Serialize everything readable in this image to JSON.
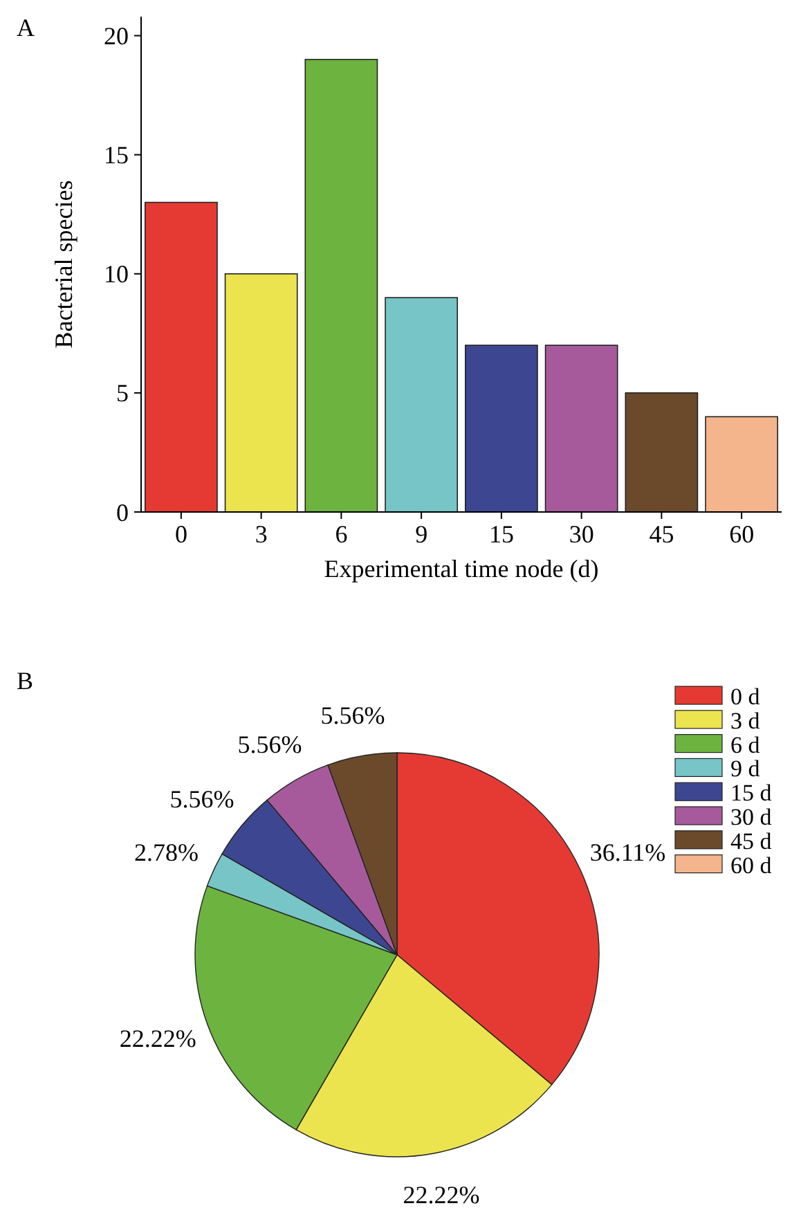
{
  "chart_data": [
    {
      "type": "bar",
      "title": "A",
      "xlabel": "Experimental time node (d)",
      "ylabel": "Bacterial species",
      "categories": [
        "0",
        "3",
        "6",
        "9",
        "15",
        "30",
        "45",
        "60"
      ],
      "values": [
        13,
        10,
        19,
        9,
        7,
        7,
        5,
        4
      ],
      "colors": [
        "#e53a33",
        "#ebe44f",
        "#6db33f",
        "#77c5c6",
        "#3d4690",
        "#a65a9c",
        "#6b4a2b",
        "#f4b48c"
      ],
      "ylim": [
        0,
        20.8
      ],
      "yticks": [
        0,
        5,
        10,
        15,
        20
      ]
    },
    {
      "type": "pie",
      "title": "B",
      "categories": [
        "0 d",
        "3 d",
        "6 d",
        "9 d",
        "15 d",
        "30 d",
        "45 d",
        "60 d"
      ],
      "values": [
        36.11,
        22.22,
        22.22,
        2.78,
        5.56,
        5.56,
        5.56,
        0
      ],
      "colors": [
        "#e53a33",
        "#ebe44f",
        "#6db33f",
        "#77c5c6",
        "#3d4690",
        "#a65a9c",
        "#6b4a2b",
        "#f4b48c"
      ],
      "value_labels": [
        "36.11%",
        "22.22%",
        "22.22%",
        "2.78%",
        "5.56%",
        "5.56%",
        "5.56%",
        null
      ],
      "legend": "right"
    }
  ]
}
